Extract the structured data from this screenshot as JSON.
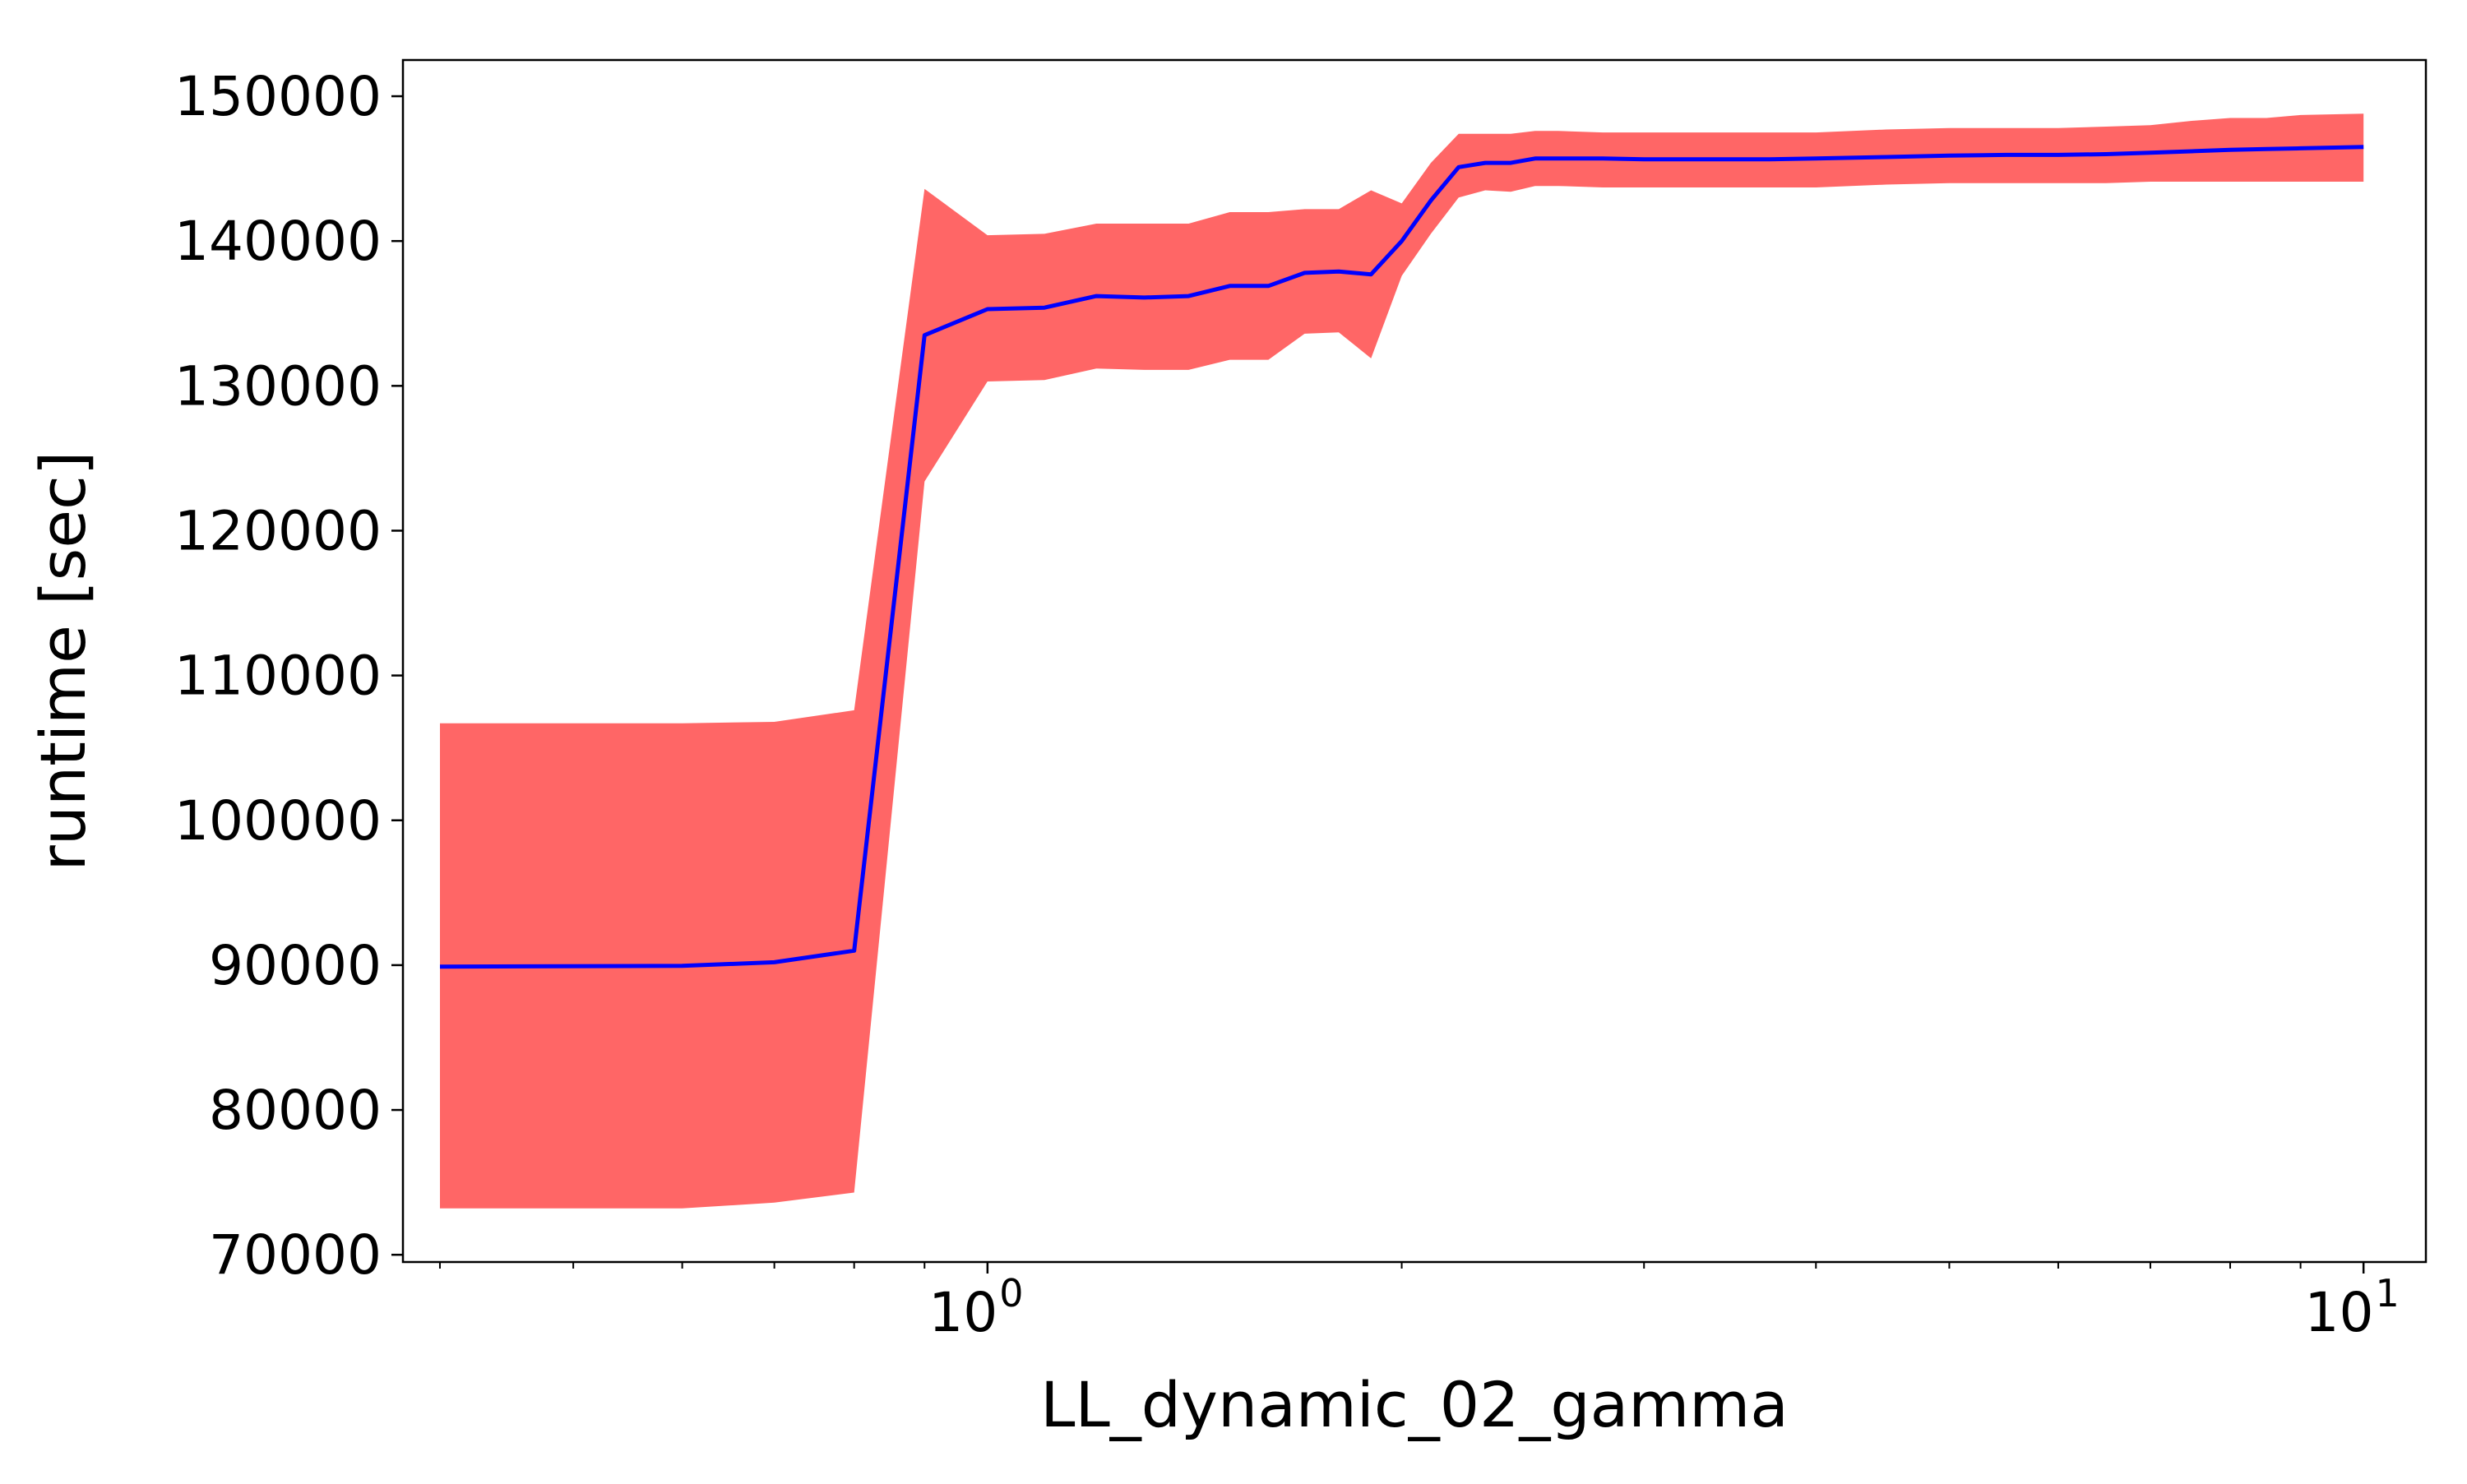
{
  "chart_data": {
    "type": "line",
    "title": "",
    "xlabel": "LL_dynamic_02_gamma",
    "ylabel": "runtime [sec]",
    "xscale": "log",
    "xlim": [
      0.376,
      11.1
    ],
    "ylim": [
      69500,
      152500
    ],
    "grid": false,
    "xticks": [
      {
        "value": 1,
        "base": "10",
        "exponent": "0"
      },
      {
        "value": 10,
        "base": "10",
        "exponent": "1"
      }
    ],
    "yticks": [
      "70000",
      "80000",
      "90000",
      "100000",
      "110000",
      "120000",
      "130000",
      "140000",
      "150000"
    ],
    "colors": {
      "line": "#0000ff",
      "band": "#ff6666"
    },
    "series": [
      {
        "kind": "mean-line",
        "x": [
          0.4,
          0.6,
          0.7,
          0.8,
          0.9,
          1.0,
          1.1,
          1.2,
          1.3,
          1.4,
          1.5,
          1.6,
          1.7,
          1.8,
          1.9,
          2.0,
          2.1,
          2.2,
          2.3,
          2.4,
          2.5,
          2.6,
          2.8,
          3.0,
          3.3,
          3.7,
          4.0,
          4.5,
          5.0,
          5.5,
          6.0,
          6.5,
          7.0,
          7.5,
          8.0,
          8.5,
          9.0,
          10.0
        ],
        "y": [
          89900,
          89950,
          90200,
          91000,
          133500,
          135300,
          135400,
          136200,
          136100,
          136200,
          136900,
          136900,
          137800,
          137900,
          137700,
          140000,
          142800,
          145100,
          145400,
          145400,
          145700,
          145700,
          145700,
          145650,
          145650,
          145650,
          145700,
          145800,
          145900,
          145950,
          145950,
          146000,
          146100,
          146200,
          146300,
          146350,
          146400,
          146500
        ]
      },
      {
        "kind": "band",
        "x": [
          0.4,
          0.6,
          0.7,
          0.8,
          0.9,
          1.0,
          1.1,
          1.2,
          1.3,
          1.4,
          1.5,
          1.6,
          1.7,
          1.8,
          1.9,
          2.0,
          2.1,
          2.2,
          2.3,
          2.4,
          2.5,
          2.6,
          2.8,
          3.0,
          3.3,
          3.7,
          4.0,
          4.5,
          5.0,
          5.5,
          6.0,
          6.5,
          7.0,
          7.5,
          8.0,
          8.5,
          9.0,
          10.0
        ],
        "y_lower": [
          73200,
          73200,
          73600,
          74300,
          123400,
          130300,
          130400,
          131200,
          131100,
          131100,
          131800,
          131800,
          133600,
          133700,
          131900,
          137600,
          140500,
          143000,
          143500,
          143400,
          143800,
          143800,
          143700,
          143700,
          143700,
          143700,
          143700,
          143900,
          144000,
          144000,
          144000,
          144000,
          144100,
          144100,
          144100,
          144100,
          144100,
          144100
        ],
        "y_upper": [
          106700,
          106700,
          106800,
          107600,
          143600,
          140400,
          140500,
          141200,
          141200,
          141200,
          142000,
          142000,
          142200,
          142200,
          143500,
          142600,
          145400,
          147400,
          147400,
          147400,
          147600,
          147600,
          147500,
          147500,
          147500,
          147500,
          147500,
          147700,
          147800,
          147800,
          147800,
          147900,
          148000,
          148300,
          148500,
          148500,
          148700,
          148800
        ]
      }
    ]
  }
}
